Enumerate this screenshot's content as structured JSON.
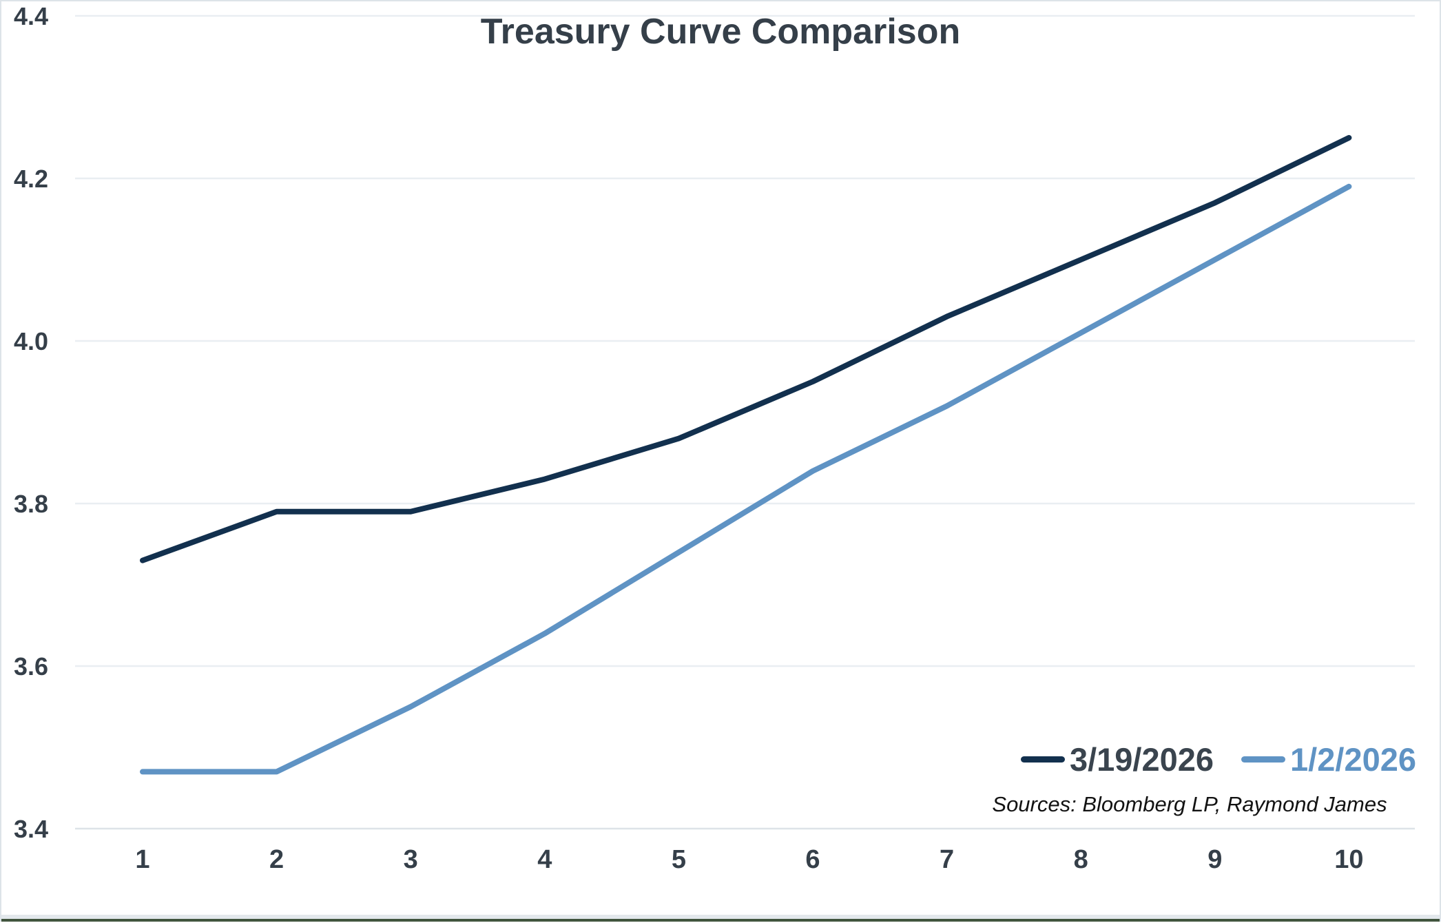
{
  "title": "Treasury Curve Comparison",
  "source_note": "Sources: Bloomberg LP, Raymond James",
  "colors": {
    "series1_line": "#12304e",
    "series2_line": "#5f93c4",
    "series1_legend_text": "#3a444e",
    "series2_legend_text": "#5f93c4",
    "title_text": "#353f49",
    "tick_text": "#353f49",
    "gridline": "#e9eef2",
    "axis_line": "#dde3e8",
    "page_border": "#dde3e8",
    "bottom_bar_gray": "#e3e8ec",
    "bottom_bar_green": "#41553e"
  },
  "chart_data": {
    "type": "line",
    "title": "Treasury Curve Comparison",
    "x": [
      1,
      2,
      3,
      4,
      5,
      6,
      7,
      8,
      9,
      10
    ],
    "series": [
      {
        "name": "3/19/2026",
        "color": "#12304e",
        "values": [
          3.73,
          3.79,
          3.79,
          3.83,
          3.88,
          3.95,
          4.03,
          4.1,
          4.17,
          4.25
        ]
      },
      {
        "name": "1/2/2026",
        "color": "#5f93c4",
        "values": [
          3.47,
          3.47,
          3.55,
          3.64,
          3.74,
          3.84,
          3.92,
          4.01,
          4.1,
          4.19
        ]
      }
    ],
    "ylim": [
      3.4,
      4.4
    ],
    "yticks": [
      3.4,
      3.6,
      3.8,
      4.0,
      4.2,
      4.4
    ],
    "ytick_format_decimals": 1,
    "xlabel": "",
    "ylabel": "",
    "grid": true,
    "legend_position": "bottom-right",
    "source": "Sources: Bloomberg LP, Raymond James"
  }
}
